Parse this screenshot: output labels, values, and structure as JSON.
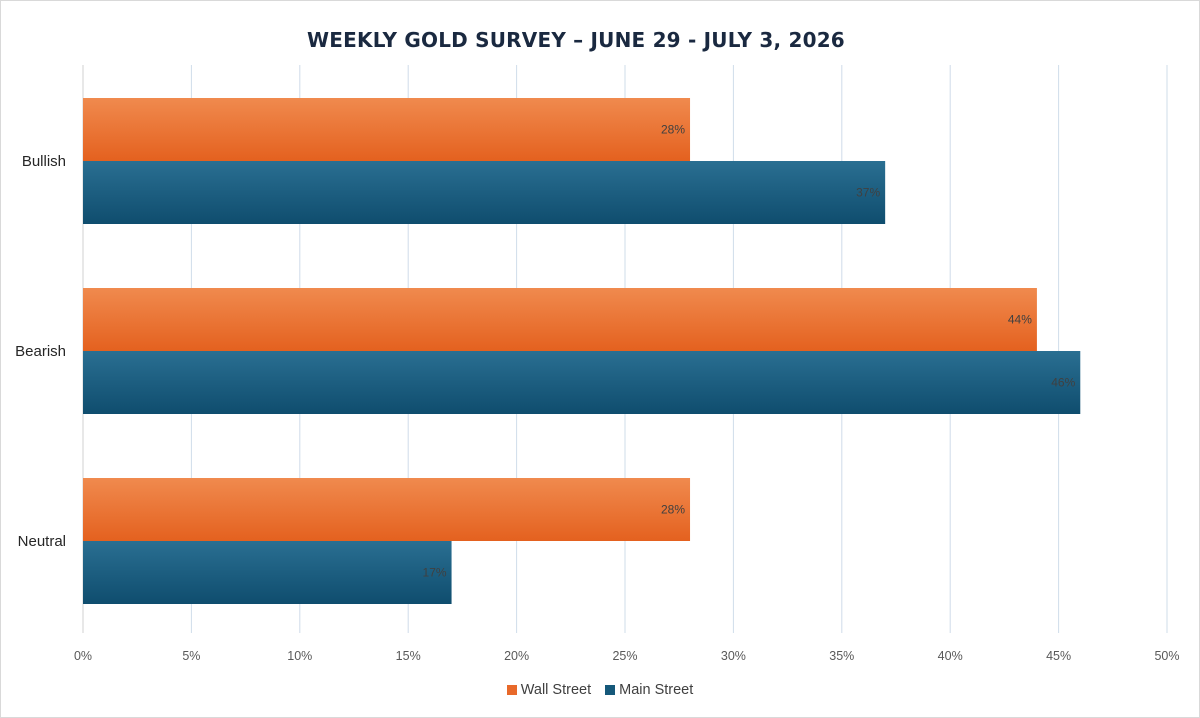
{
  "chart_data": {
    "type": "bar",
    "orientation": "horizontal",
    "title": "WEEKLY GOLD SURVEY – JUNE 29 - JULY 3, 2026",
    "categories": [
      "Bullish",
      "Bearish",
      "Neutral"
    ],
    "series": [
      {
        "name": "Wall Street",
        "values": [
          28,
          44,
          28
        ],
        "labels": [
          "28%",
          "44%",
          "28%"
        ],
        "color": "#e8692a"
      },
      {
        "name": "Main Street",
        "values": [
          37,
          46,
          17
        ],
        "labels": [
          "37%",
          "46%",
          "17%"
        ],
        "color": "#15587a"
      }
    ],
    "xlim": [
      0,
      50
    ],
    "xticks": [
      0,
      5,
      10,
      15,
      20,
      25,
      30,
      35,
      40,
      45,
      50
    ],
    "xtick_labels": [
      "0%",
      "5%",
      "10%",
      "15%",
      "20%",
      "25%",
      "30%",
      "35%",
      "40%",
      "45%",
      "50%"
    ],
    "grid": "vertical",
    "legend_position": "bottom",
    "xlabel": "",
    "ylabel": ""
  }
}
